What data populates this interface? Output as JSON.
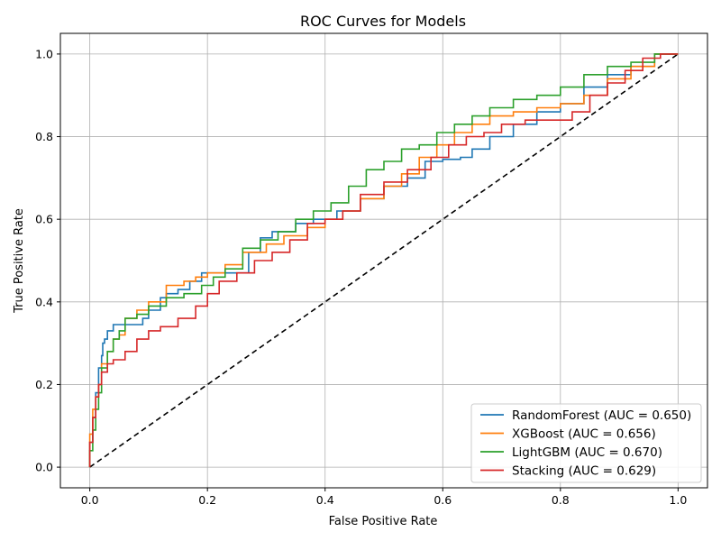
{
  "chart_data": {
    "type": "line",
    "title": "ROC Curves for Models",
    "xlabel": "False Positive Rate",
    "ylabel": "True Positive Rate",
    "xlim": [
      -0.05,
      1.05
    ],
    "ylim": [
      -0.05,
      1.05
    ],
    "xticks": [
      "0.0",
      "0.2",
      "0.4",
      "0.6",
      "0.8",
      "1.0"
    ],
    "yticks": [
      "0.0",
      "0.2",
      "0.4",
      "0.6",
      "0.8",
      "1.0"
    ],
    "grid": true,
    "legend_position": "lower-right",
    "series": [
      {
        "name": "RandomForest (AUC = 0.650)",
        "color": "#1f77b4",
        "x": [
          0,
          0.005,
          0.01,
          0.015,
          0.02,
          0.022,
          0.025,
          0.03,
          0.04,
          0.05,
          0.07,
          0.09,
          0.1,
          0.12,
          0.13,
          0.15,
          0.17,
          0.19,
          0.22,
          0.25,
          0.27,
          0.29,
          0.31,
          0.35,
          0.38,
          0.42,
          0.46,
          0.5,
          0.54,
          0.57,
          0.6,
          0.63,
          0.65,
          0.68,
          0.72,
          0.76,
          0.8,
          0.84,
          0.88,
          0.92,
          0.96,
          1.0
        ],
        "y": [
          0,
          0.06,
          0.12,
          0.18,
          0.24,
          0.27,
          0.3,
          0.31,
          0.33,
          0.345,
          0.345,
          0.345,
          0.36,
          0.38,
          0.41,
          0.42,
          0.43,
          0.45,
          0.47,
          0.47,
          0.47,
          0.52,
          0.555,
          0.57,
          0.59,
          0.6,
          0.62,
          0.65,
          0.68,
          0.7,
          0.74,
          0.745,
          0.75,
          0.77,
          0.8,
          0.83,
          0.86,
          0.88,
          0.92,
          0.95,
          0.97,
          1.0
        ]
      },
      {
        "name": "XGBoost (AUC = 0.656)",
        "color": "#ff7f0e",
        "x": [
          0,
          0.005,
          0.01,
          0.015,
          0.02,
          0.03,
          0.04,
          0.05,
          0.06,
          0.08,
          0.1,
          0.13,
          0.16,
          0.18,
          0.2,
          0.23,
          0.26,
          0.3,
          0.33,
          0.37,
          0.4,
          0.43,
          0.46,
          0.5,
          0.53,
          0.56,
          0.59,
          0.62,
          0.65,
          0.68,
          0.72,
          0.76,
          0.8,
          0.84,
          0.88,
          0.92,
          0.96,
          1.0
        ],
        "y": [
          0,
          0.08,
          0.14,
          0.17,
          0.2,
          0.25,
          0.28,
          0.31,
          0.32,
          0.36,
          0.38,
          0.4,
          0.44,
          0.45,
          0.46,
          0.47,
          0.49,
          0.52,
          0.54,
          0.56,
          0.58,
          0.6,
          0.62,
          0.65,
          0.68,
          0.71,
          0.75,
          0.78,
          0.81,
          0.83,
          0.85,
          0.86,
          0.87,
          0.88,
          0.9,
          0.94,
          0.97,
          1.0
        ]
      },
      {
        "name": "LightGBM (AUC = 0.670)",
        "color": "#2ca02c",
        "x": [
          0,
          0.005,
          0.01,
          0.015,
          0.02,
          0.03,
          0.04,
          0.05,
          0.06,
          0.08,
          0.1,
          0.13,
          0.16,
          0.19,
          0.21,
          0.23,
          0.26,
          0.29,
          0.32,
          0.35,
          0.38,
          0.41,
          0.44,
          0.47,
          0.5,
          0.53,
          0.56,
          0.59,
          0.62,
          0.65,
          0.68,
          0.72,
          0.76,
          0.8,
          0.84,
          0.88,
          0.92,
          0.96,
          1.0
        ],
        "y": [
          0,
          0.04,
          0.09,
          0.14,
          0.18,
          0.24,
          0.28,
          0.31,
          0.33,
          0.36,
          0.37,
          0.39,
          0.41,
          0.42,
          0.44,
          0.46,
          0.48,
          0.53,
          0.55,
          0.57,
          0.6,
          0.62,
          0.64,
          0.68,
          0.72,
          0.74,
          0.77,
          0.78,
          0.81,
          0.83,
          0.85,
          0.87,
          0.89,
          0.9,
          0.92,
          0.95,
          0.97,
          0.98,
          1.0
        ]
      },
      {
        "name": "Stacking (AUC = 0.629)",
        "color": "#d62728",
        "x": [
          0,
          0.005,
          0.01,
          0.015,
          0.02,
          0.03,
          0.04,
          0.06,
          0.08,
          0.1,
          0.12,
          0.15,
          0.18,
          0.2,
          0.22,
          0.25,
          0.28,
          0.31,
          0.34,
          0.37,
          0.4,
          0.43,
          0.46,
          0.5,
          0.54,
          0.58,
          0.61,
          0.64,
          0.67,
          0.7,
          0.74,
          0.78,
          0.82,
          0.85,
          0.88,
          0.91,
          0.94,
          0.97,
          1.0
        ],
        "y": [
          0,
          0.06,
          0.12,
          0.17,
          0.2,
          0.23,
          0.25,
          0.26,
          0.28,
          0.31,
          0.33,
          0.34,
          0.36,
          0.39,
          0.42,
          0.45,
          0.47,
          0.5,
          0.52,
          0.55,
          0.59,
          0.6,
          0.62,
          0.66,
          0.69,
          0.72,
          0.75,
          0.78,
          0.8,
          0.81,
          0.83,
          0.84,
          0.84,
          0.86,
          0.9,
          0.93,
          0.96,
          0.99,
          1.0
        ]
      }
    ]
  }
}
